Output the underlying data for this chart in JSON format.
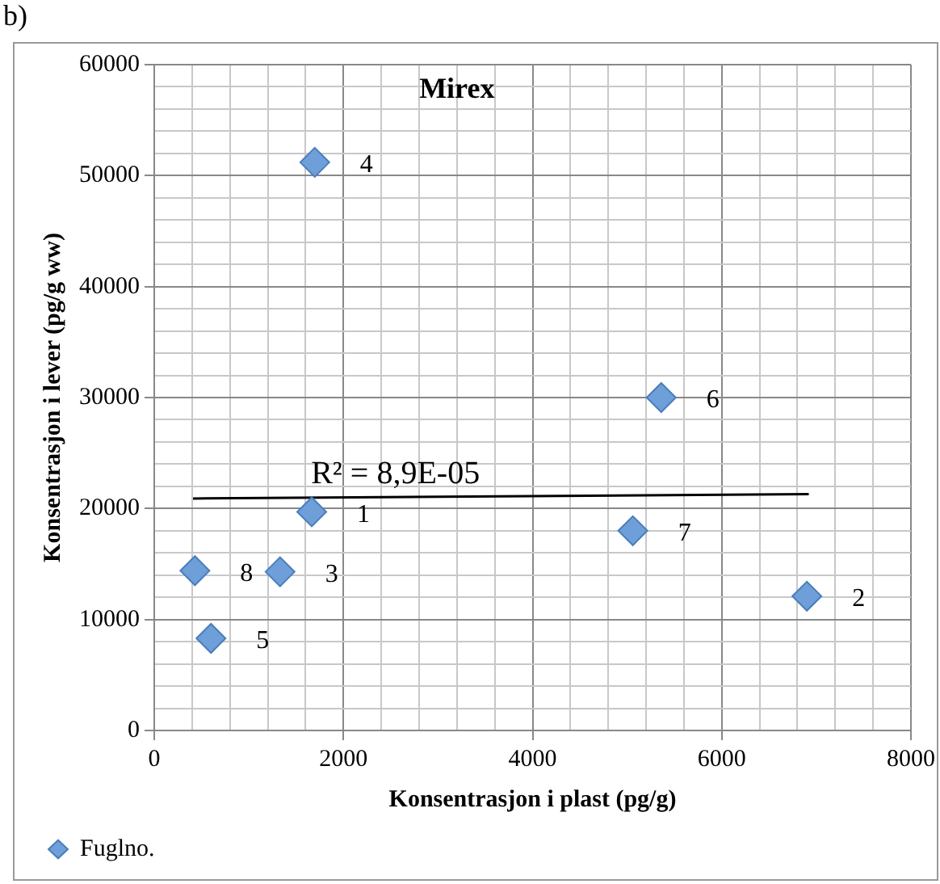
{
  "chart_data": {
    "type": "scatter",
    "title": "Mirex",
    "xlabel": "Konsentrasjon i plast (pg/g)",
    "ylabel": "Konsentrasjon i lever (pg/g ww)",
    "series": [
      {
        "name": "Fuglno.",
        "color": "#6f9fd8",
        "x": [
          1665,
          6900,
          1330,
          1697,
          600,
          5360,
          5060,
          430
        ],
        "values": [
          19700,
          12100,
          14300,
          51200,
          8300,
          30000,
          18000,
          14400
        ],
        "marker": "diamond"
      },
      {
        "type": "line",
        "color": "#000000",
        "x": [
          410,
          6920
        ],
        "values": [
          20900,
          21300
        ],
        "marker": "none"
      }
    ],
    "xlim": [
      0,
      8000
    ],
    "ylim": [
      0,
      60000
    ],
    "xticks": [
      0,
      {
        "value": 400,
        "label": null
      },
      {
        "value": 800,
        "label": null
      },
      {
        "value": 1200,
        "label": null
      },
      {
        "value": 1600,
        "label": null
      },
      2000,
      {
        "value": 2400,
        "label": null
      },
      {
        "value": 2800,
        "label": null
      },
      {
        "value": 3200,
        "label": null
      },
      {
        "value": 3600,
        "label": null
      },
      4000,
      {
        "value": 4400,
        "label": null
      },
      {
        "value": 4800,
        "label": null
      },
      {
        "value": 5200,
        "label": null
      },
      {
        "value": 5600,
        "label": null
      },
      6000,
      {
        "value": 6400,
        "label": null
      },
      {
        "value": 6800,
        "label": null
      },
      {
        "value": 7200,
        "label": null
      },
      {
        "value": 7600,
        "label": null
      },
      8000
    ],
    "yticks": [
      0,
      {
        "value": 2000,
        "label": null
      },
      {
        "value": 4000,
        "label": null
      },
      {
        "value": 6000,
        "label": null
      },
      {
        "value": 8000,
        "label": null
      },
      10000,
      {
        "value": 12000,
        "label": null
      },
      {
        "value": 14000,
        "label": null
      },
      {
        "value": 16000,
        "label": null
      },
      {
        "value": 18000,
        "label": null
      },
      20000,
      {
        "value": 22000,
        "label": null
      },
      {
        "value": 24000,
        "label": null
      },
      {
        "value": 26000,
        "label": null
      },
      {
        "value": 28000,
        "label": null
      },
      30000,
      {
        "value": 32000,
        "label": null
      },
      {
        "value": 34000,
        "label": null
      },
      {
        "value": 36000,
        "label": null
      },
      {
        "value": 38000,
        "label": null
      },
      40000,
      {
        "value": 42000,
        "label": null
      },
      {
        "value": 44000,
        "label": null
      },
      {
        "value": 46000,
        "label": null
      },
      {
        "value": 48000,
        "label": null
      },
      50000,
      {
        "value": 52000,
        "label": null
      },
      {
        "value": 54000,
        "label": null
      },
      {
        "value": 56000,
        "label": null
      },
      {
        "value": 58000,
        "label": null
      },
      60000
    ],
    "grid": true,
    "legend": "bottom left",
    "annotations": [
      "b)",
      {
        "text": "1",
        "x": 1665,
        "y": 19700
      },
      {
        "text": "2",
        "x": 6900,
        "y": 12100
      },
      {
        "text": "3",
        "x": 1330,
        "y": 14300
      },
      {
        "text": "4",
        "x": 1697,
        "y": 51200
      },
      {
        "text": "5",
        "x": 600,
        "y": 8300
      },
      {
        "text": "6",
        "x": 5360,
        "y": 30000
      },
      {
        "text": "7",
        "x": 5060,
        "y": 18000
      },
      {
        "text": "8",
        "x": 430,
        "y": 14400
      },
      {
        "text": "R² = 8,9E-05",
        "x": 2550,
        "y": 21000
      }
    ]
  }
}
